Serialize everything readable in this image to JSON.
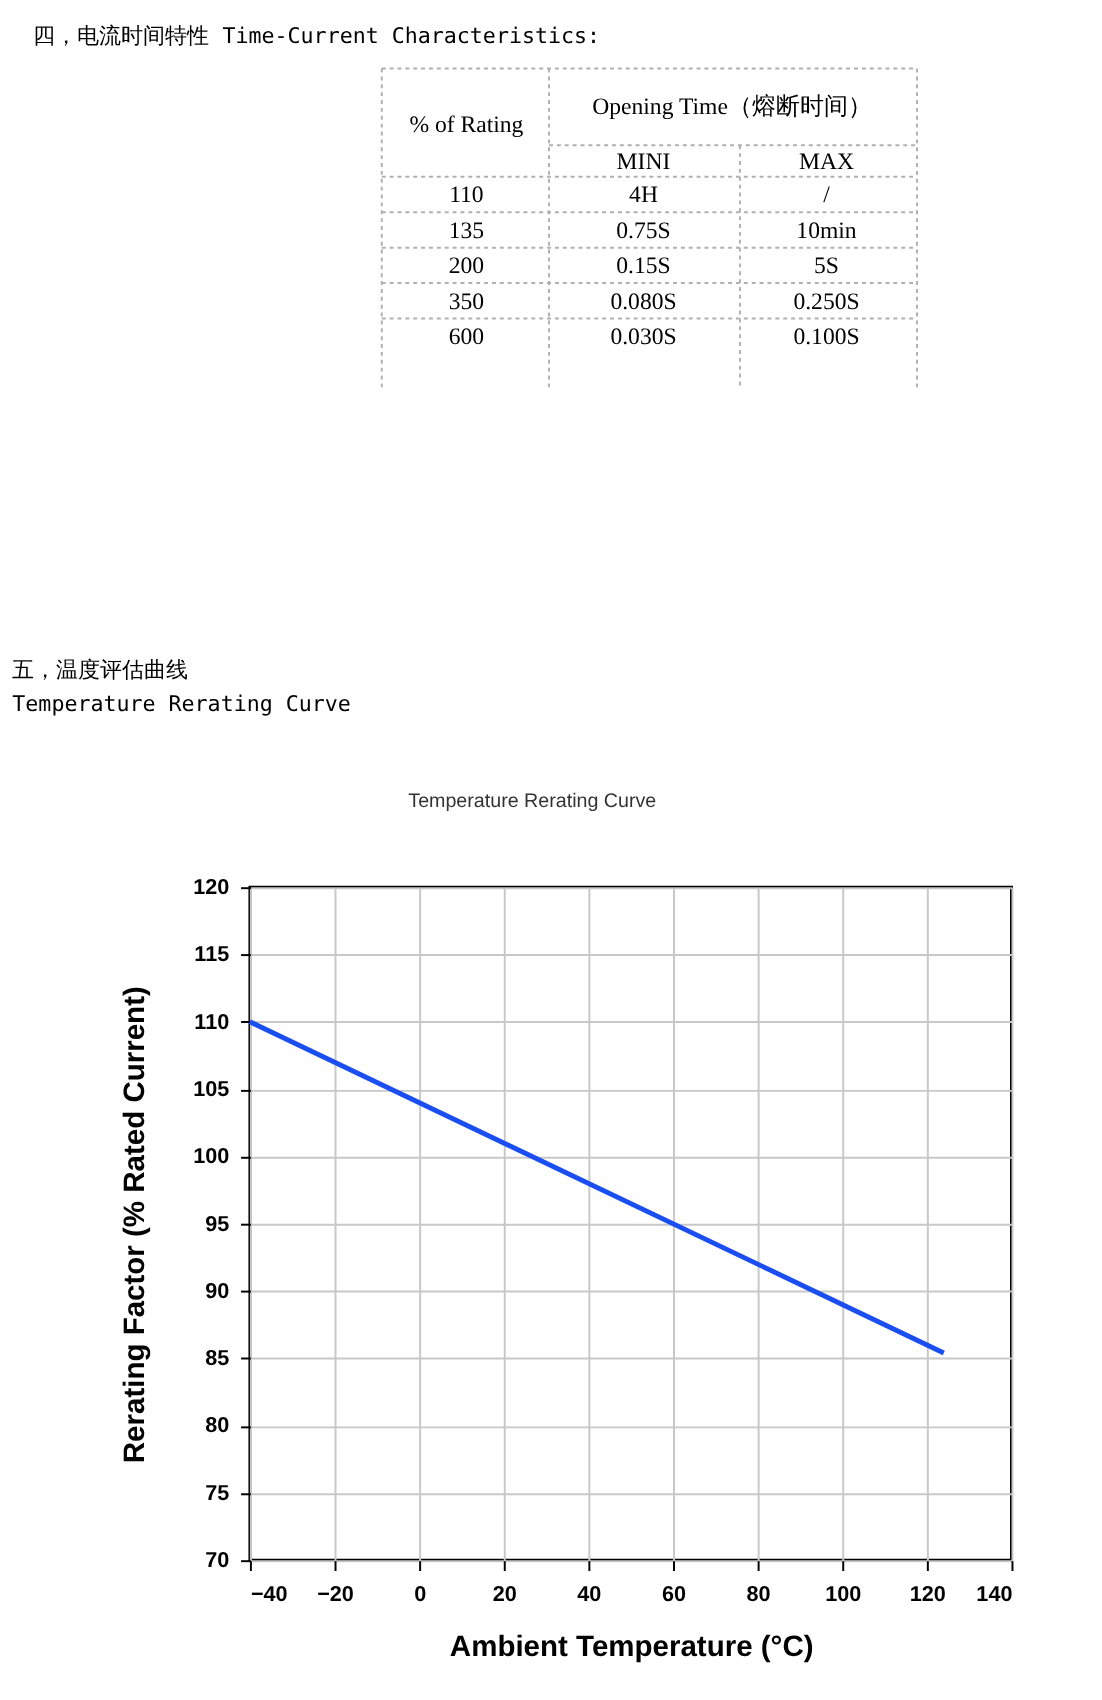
{
  "chart_data": [
    {
      "type": "other",
      "title": "四，电流时间特性 Time-Current Characteristics:",
      "annotations": [
        "% of Rating",
        "Opening Time（熔断时间）",
        "MINI",
        "MAX",
        "110",
        "4H",
        "/",
        "135",
        "0.75S",
        "10min",
        "200",
        "0.15S",
        "5S",
        "350",
        "0.080S",
        "0.250S",
        "600",
        "0.030S",
        "0.100S"
      ]
    },
    {
      "type": "line",
      "title": "五，温度评估曲线",
      "subtitle": "Temperature Rerating Curve",
      "annotations": [
        "Temperature Rerating Curve"
      ],
      "xlabel": "Ambient Temperature (°C)",
      "ylabel": "Rerating Factor (% Rated Current)",
      "x": [
        -40,
        124
      ],
      "series": [
        {
          "color": "#1a4ef0",
          "values": [
            110,
            85.4
          ]
        }
      ],
      "xlim": [
        -40,
        140
      ],
      "xticks": [
        -40,
        -20,
        0,
        20,
        40,
        60,
        80,
        100,
        120,
        140
      ],
      "ylim": [
        70,
        120
      ],
      "yticks": [
        70,
        75,
        80,
        85,
        90,
        95,
        100,
        105,
        110,
        115,
        120
      ],
      "grid": true,
      "marker": "none",
      "line_style": "solid"
    }
  ]
}
